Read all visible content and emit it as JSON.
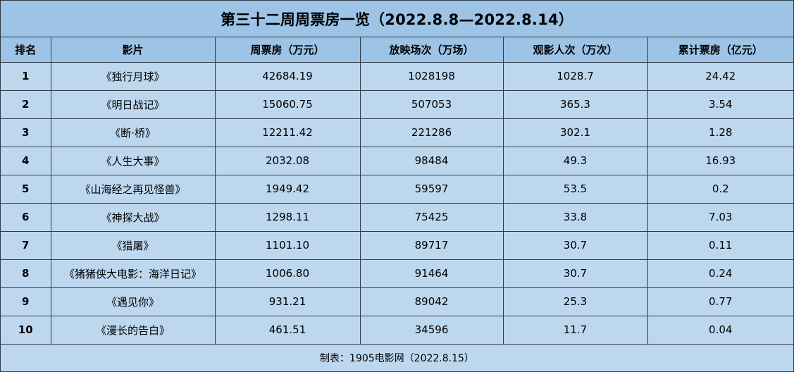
{
  "title": "第三十二周周票房一览（2022.8.8—2022.8.14）",
  "columns": [
    "排名",
    "影片",
    "周票房（万元）",
    "放映场次（万场）",
    "观影人次（万次）",
    "累计票房（亿元）"
  ],
  "rows": [
    {
      "rank": "1",
      "film": "《独行月球》",
      "weekly_box": "42684.19",
      "screenings": "1028198",
      "admissions": "1028.7",
      "cumulative": "24.42"
    },
    {
      "rank": "2",
      "film": "《明日战记》",
      "weekly_box": "15060.75",
      "screenings": "507053",
      "admissions": "365.3",
      "cumulative": "3.54"
    },
    {
      "rank": "3",
      "film": "《断·桥》",
      "weekly_box": "12211.42",
      "screenings": "221286",
      "admissions": "302.1",
      "cumulative": "1.28"
    },
    {
      "rank": "4",
      "film": "《人生大事》",
      "weekly_box": "2032.08",
      "screenings": "98484",
      "admissions": "49.3",
      "cumulative": "16.93"
    },
    {
      "rank": "5",
      "film": "《山海经之再见怪兽》",
      "weekly_box": "1949.42",
      "screenings": "59597",
      "admissions": "53.5",
      "cumulative": "0.2"
    },
    {
      "rank": "6",
      "film": "《神探大战》",
      "weekly_box": "1298.11",
      "screenings": "75425",
      "admissions": "33.8",
      "cumulative": "7.03"
    },
    {
      "rank": "7",
      "film": "《猎屠》",
      "weekly_box": "1101.10",
      "screenings": "89717",
      "admissions": "30.7",
      "cumulative": "0.11"
    },
    {
      "rank": "8",
      "film": "《猪猪侠大电影：海洋日记》",
      "weekly_box": "1006.80",
      "screenings": "91464",
      "admissions": "30.7",
      "cumulative": "0.24"
    },
    {
      "rank": "9",
      "film": "《遇见你》",
      "weekly_box": "931.21",
      "screenings": "89042",
      "admissions": "25.3",
      "cumulative": "0.77"
    },
    {
      "rank": "10",
      "film": "《漫长的告白》",
      "weekly_box": "461.51",
      "screenings": "34596",
      "admissions": "11.7",
      "cumulative": "0.04"
    }
  ],
  "footer": "制表：1905电影网（2022.8.15）",
  "colors": {
    "header_fill": "#9dc3e6",
    "body_fill": "#bdd7ee",
    "border": "#2e3a46"
  }
}
